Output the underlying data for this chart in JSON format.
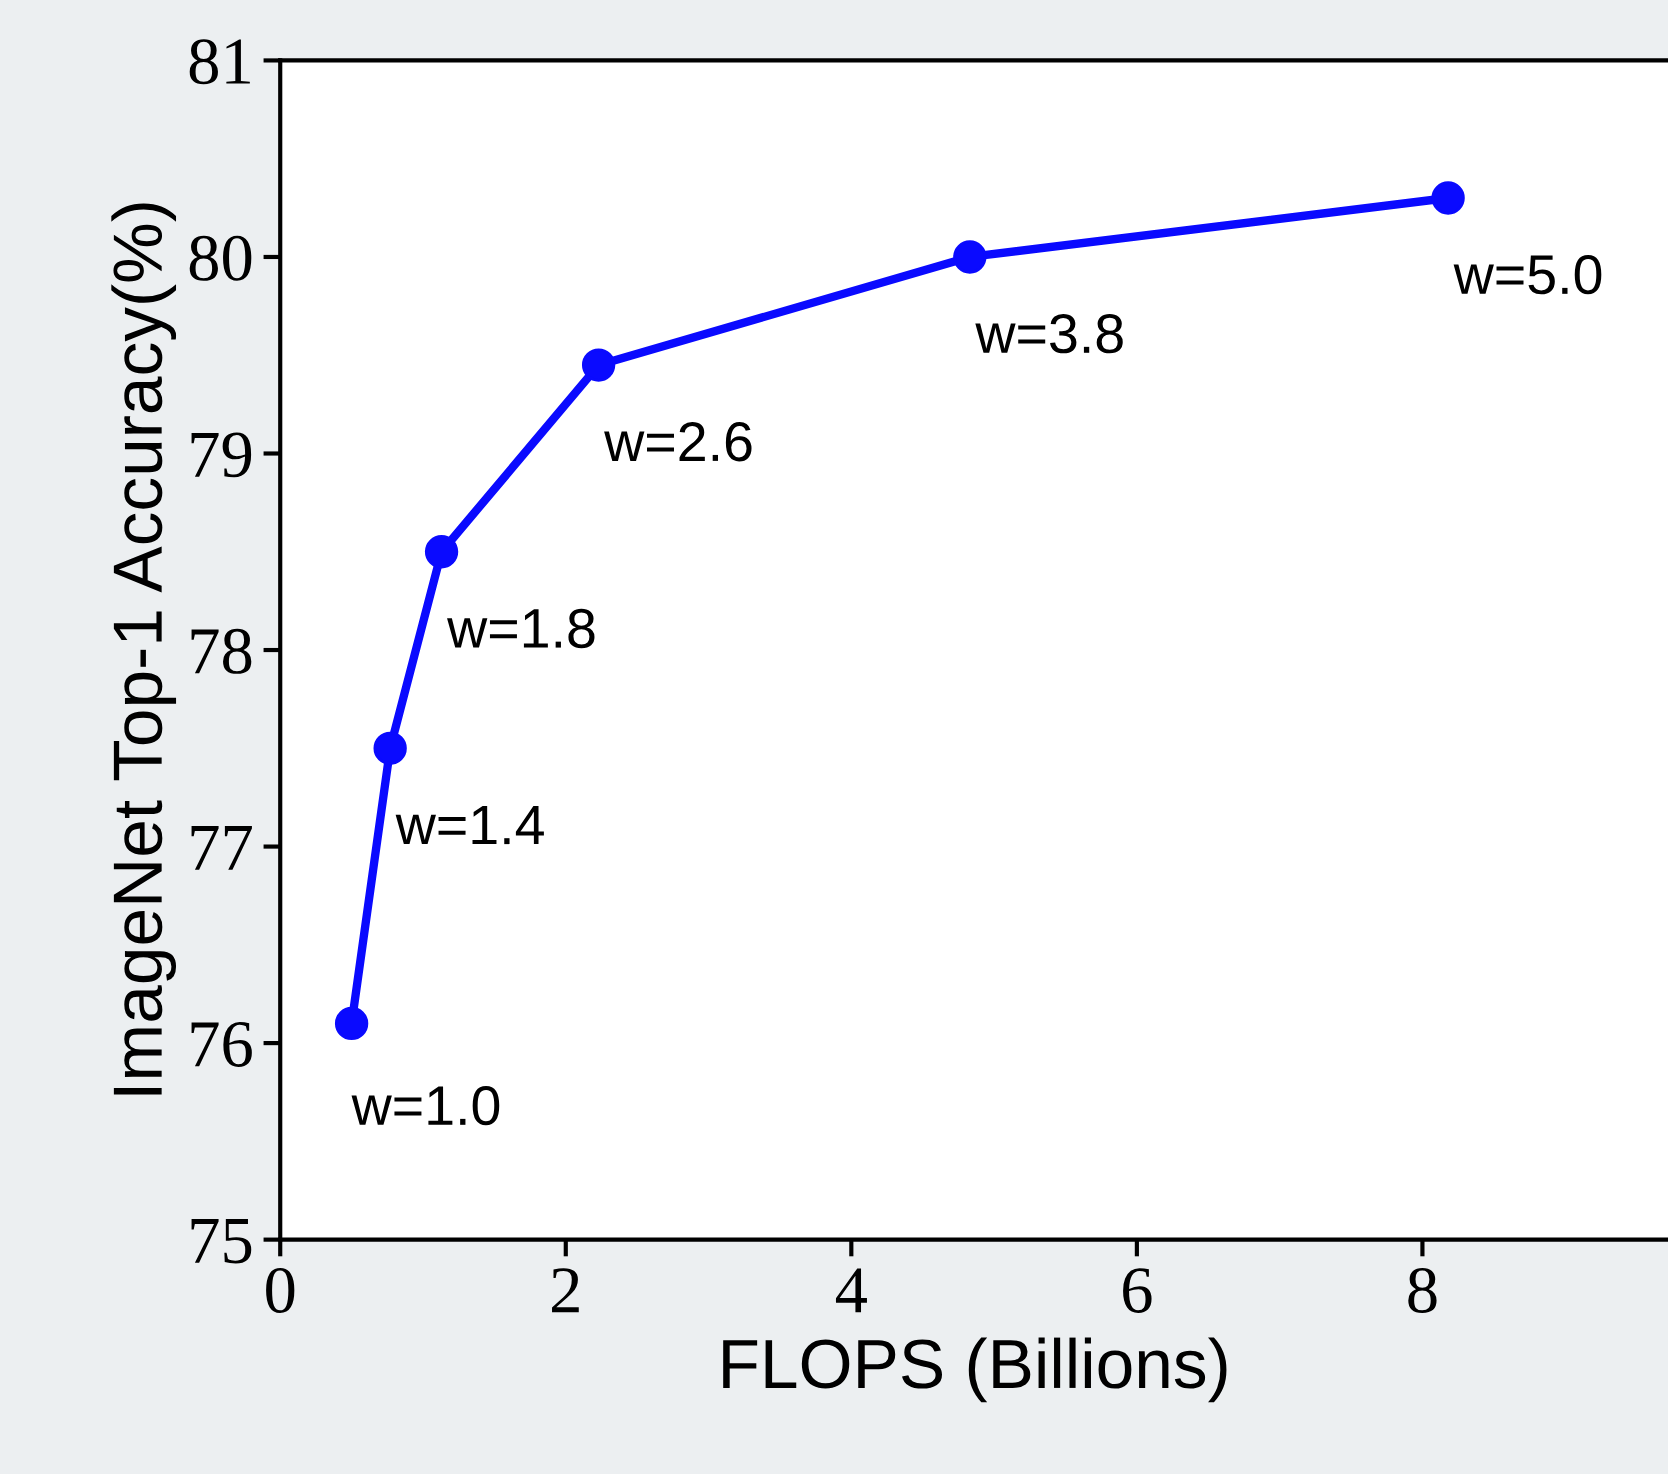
{
  "chart_data": {
    "type": "line",
    "xlabel": "FLOPS (Billions)",
    "ylabel": "ImageNet Top-1 Accuracy(%)",
    "x": [
      0.5,
      0.77,
      1.13,
      2.23,
      4.83,
      8.18
    ],
    "series": [
      {
        "color": "#0a0aff",
        "values": [
          76.1,
          77.5,
          78.5,
          79.45,
          80.0,
          80.3
        ]
      }
    ],
    "marker": "circle",
    "line_style": "solid",
    "grid": false,
    "legend": false,
    "xlim": [
      0,
      9.72
    ],
    "xticks": [
      0,
      2,
      4,
      6,
      8
    ],
    "ylim": [
      75,
      81
    ],
    "yticks": [
      75,
      76,
      77,
      78,
      79,
      80,
      81
    ],
    "annotations": [
      {
        "text": "w=1.0",
        "x": 0.5,
        "y": 76.1
      },
      {
        "text": "w=1.4",
        "x": 0.77,
        "y": 77.5
      },
      {
        "text": "w=1.8",
        "x": 1.13,
        "y": 78.5
      },
      {
        "text": "w=2.6",
        "x": 2.23,
        "y": 79.45
      },
      {
        "text": "w=3.8",
        "x": 4.83,
        "y": 80.0
      },
      {
        "text": "w=5.0",
        "x": 8.18,
        "y": 80.3
      }
    ]
  }
}
